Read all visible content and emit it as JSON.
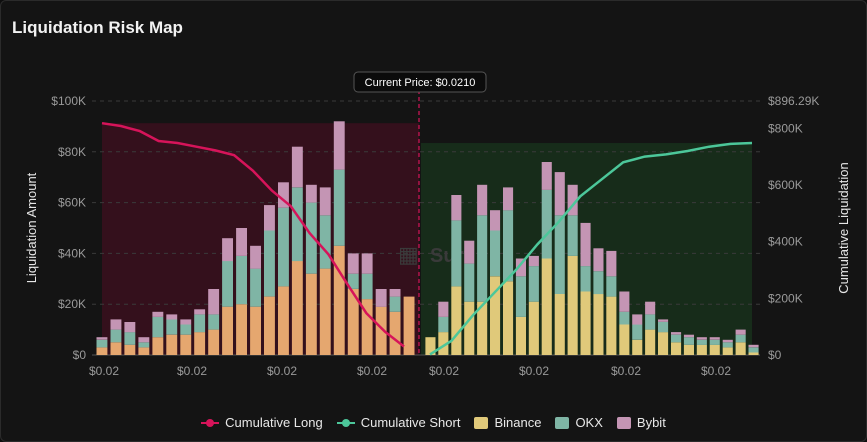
{
  "title": "Liquidation Risk Map",
  "current_price_label": "Current Price: $0.0210",
  "watermark": "Surf",
  "colors": {
    "long": "#d6145a",
    "short": "#4cc79a",
    "binance": "#e0c97a",
    "binance_left": "#e5a76f",
    "okx": "#7fb5a5",
    "bybit": "#c495b4",
    "long_fill": "#3a0f1d",
    "short_fill": "#18301b"
  },
  "chart_data": {
    "type": "bar",
    "title": "Liquidation Risk Map",
    "ylabel": "Liquidation Amount",
    "y2label": "Cumulative Liquidation",
    "ylim": [
      0,
      100000
    ],
    "y2lim": [
      0,
      896290
    ],
    "y_ticks": [
      "$0",
      "$20K",
      "$40K",
      "$60K",
      "$80K",
      "$100K"
    ],
    "y2_ticks": [
      "$0",
      "$200K",
      "$400K",
      "$600K",
      "$800K",
      "$896.29K"
    ],
    "x_tick_labels": [
      "$0.02",
      "$0.02",
      "$0.02",
      "$0.02",
      "$0.02",
      "$0.02",
      "$0.02",
      "$0.02"
    ],
    "current_price": 0.021,
    "long_bars": {
      "binance": [
        3000,
        5000,
        4000,
        3000,
        7000,
        8000,
        8000,
        9000,
        10000,
        19000,
        20000,
        19000,
        23000,
        27000,
        37000,
        32000,
        34000,
        43000,
        26000,
        22000,
        19000,
        17000,
        23000
      ],
      "okx": [
        3000,
        5000,
        5000,
        2000,
        8000,
        6000,
        4000,
        7000,
        6000,
        18000,
        19000,
        15000,
        26000,
        31000,
        29000,
        28000,
        21000,
        30000,
        6000,
        10000,
        0,
        6000,
        0
      ],
      "bybit": [
        1000,
        4000,
        4000,
        2000,
        2000,
        2000,
        2000,
        2000,
        10000,
        9000,
        11000,
        9000,
        10000,
        10000,
        16000,
        7000,
        11000,
        19000,
        8000,
        8000,
        7000,
        3000,
        0
      ]
    },
    "short_bars": {
      "binance": [
        7000,
        9000,
        27000,
        21000,
        21000,
        31000,
        29000,
        15000,
        21000,
        38000,
        24000,
        39000,
        25000,
        24000,
        23000,
        12000,
        6000,
        10000,
        9000,
        5000,
        4000,
        4000,
        4000,
        3000,
        5000,
        1000
      ],
      "okx": [
        0,
        6000,
        26000,
        15000,
        34000,
        18000,
        28000,
        16000,
        14000,
        27000,
        31000,
        16000,
        10000,
        9000,
        8000,
        5000,
        6000,
        6000,
        4000,
        3000,
        3000,
        2000,
        2000,
        2000,
        3000,
        2000
      ],
      "bybit": [
        0,
        6000,
        10000,
        9000,
        12000,
        8000,
        9000,
        7000,
        4000,
        11000,
        17000,
        12000,
        17000,
        9000,
        10000,
        8000,
        4000,
        5000,
        1000,
        1000,
        1000,
        1000,
        1000,
        1000,
        2000,
        1000
      ]
    },
    "cumulative_long": [
      818000,
      808000,
      790000,
      755000,
      748000,
      735000,
      722000,
      705000,
      650000,
      580000,
      525000,
      430000,
      355000,
      250000,
      148000,
      82000,
      30000
    ],
    "cumulative_short": [
      2000,
      50000,
      140000,
      220000,
      300000,
      390000,
      470000,
      560000,
      620000,
      680000,
      700000,
      708000,
      720000,
      735000,
      745000,
      748000
    ]
  },
  "legend": {
    "cumulative_long": "Cumulative Long",
    "cumulative_short": "Cumulative Short",
    "binance": "Binance",
    "okx": "OKX",
    "bybit": "Bybit"
  }
}
